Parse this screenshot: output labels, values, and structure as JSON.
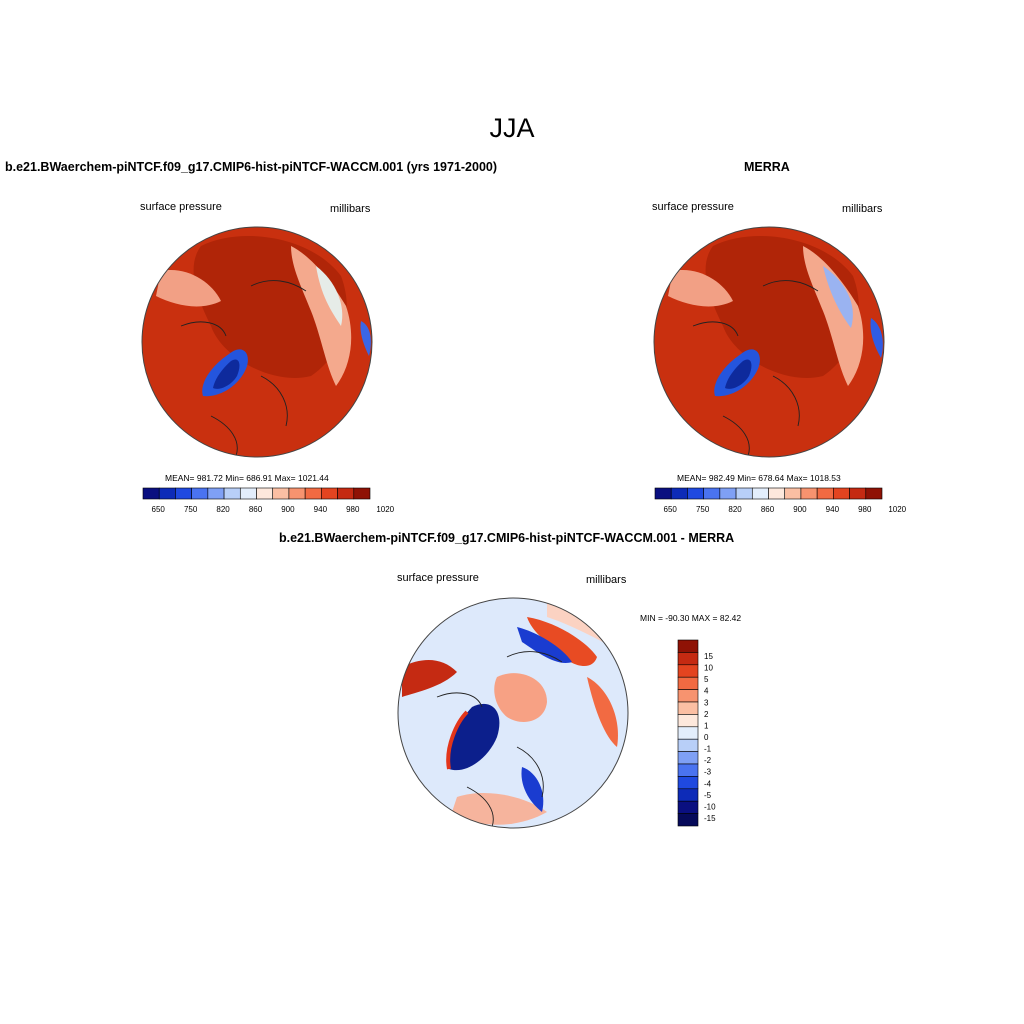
{
  "main_title": "JJA",
  "panels": [
    {
      "title": "b.e21.BWaerchem-piNTCF.f09_g17.CMIP6-hist-piNTCF-WACCM.001 (yrs 1971-2000)",
      "left_label": "surface pressure",
      "right_label": "millibars",
      "stats": "MEAN= 981.72  Min= 686.91  Max= 1021.44"
    },
    {
      "title": "MERRA",
      "left_label": "surface pressure",
      "right_label": "millibars",
      "stats": "MEAN= 982.49  Min= 678.64  Max= 1018.53"
    },
    {
      "title": "b.e21.BWaerchem-piNTCF.f09_g17.CMIP6-hist-piNTCF-WACCM.001 - MERRA",
      "left_label": "surface pressure",
      "right_label": "millibars",
      "stats": "MIN = -90.30 MAX =  82.42"
    }
  ],
  "colorbar_abs": {
    "ticks": [
      "650",
      "750",
      "820",
      "860",
      "900",
      "940",
      "980",
      "1020"
    ],
    "colors": [
      "#0a0f80",
      "#0d2bb8",
      "#1f49e0",
      "#4a73f0",
      "#7fa0f5",
      "#b8cff8",
      "#e3eefc",
      "#fde8dc",
      "#fbbfa3",
      "#f7936f",
      "#f16a42",
      "#e34420",
      "#c52a12",
      "#8f1205"
    ]
  },
  "colorbar_diff": {
    "ticks": [
      "15",
      "10",
      "5",
      "4",
      "3",
      "2",
      "1",
      "0",
      "-1",
      "-2",
      "-3",
      "-4",
      "-5",
      "-10",
      "-15"
    ],
    "colors": [
      "#8f1205",
      "#c52a12",
      "#e34420",
      "#f16a42",
      "#f7936f",
      "#fbbfa3",
      "#fde8dc",
      "#e3eefc",
      "#b8cff8",
      "#7fa0f5",
      "#4a73f0",
      "#1f49e0",
      "#0d2bb8",
      "#0a0f80",
      "#060a5a"
    ]
  }
}
